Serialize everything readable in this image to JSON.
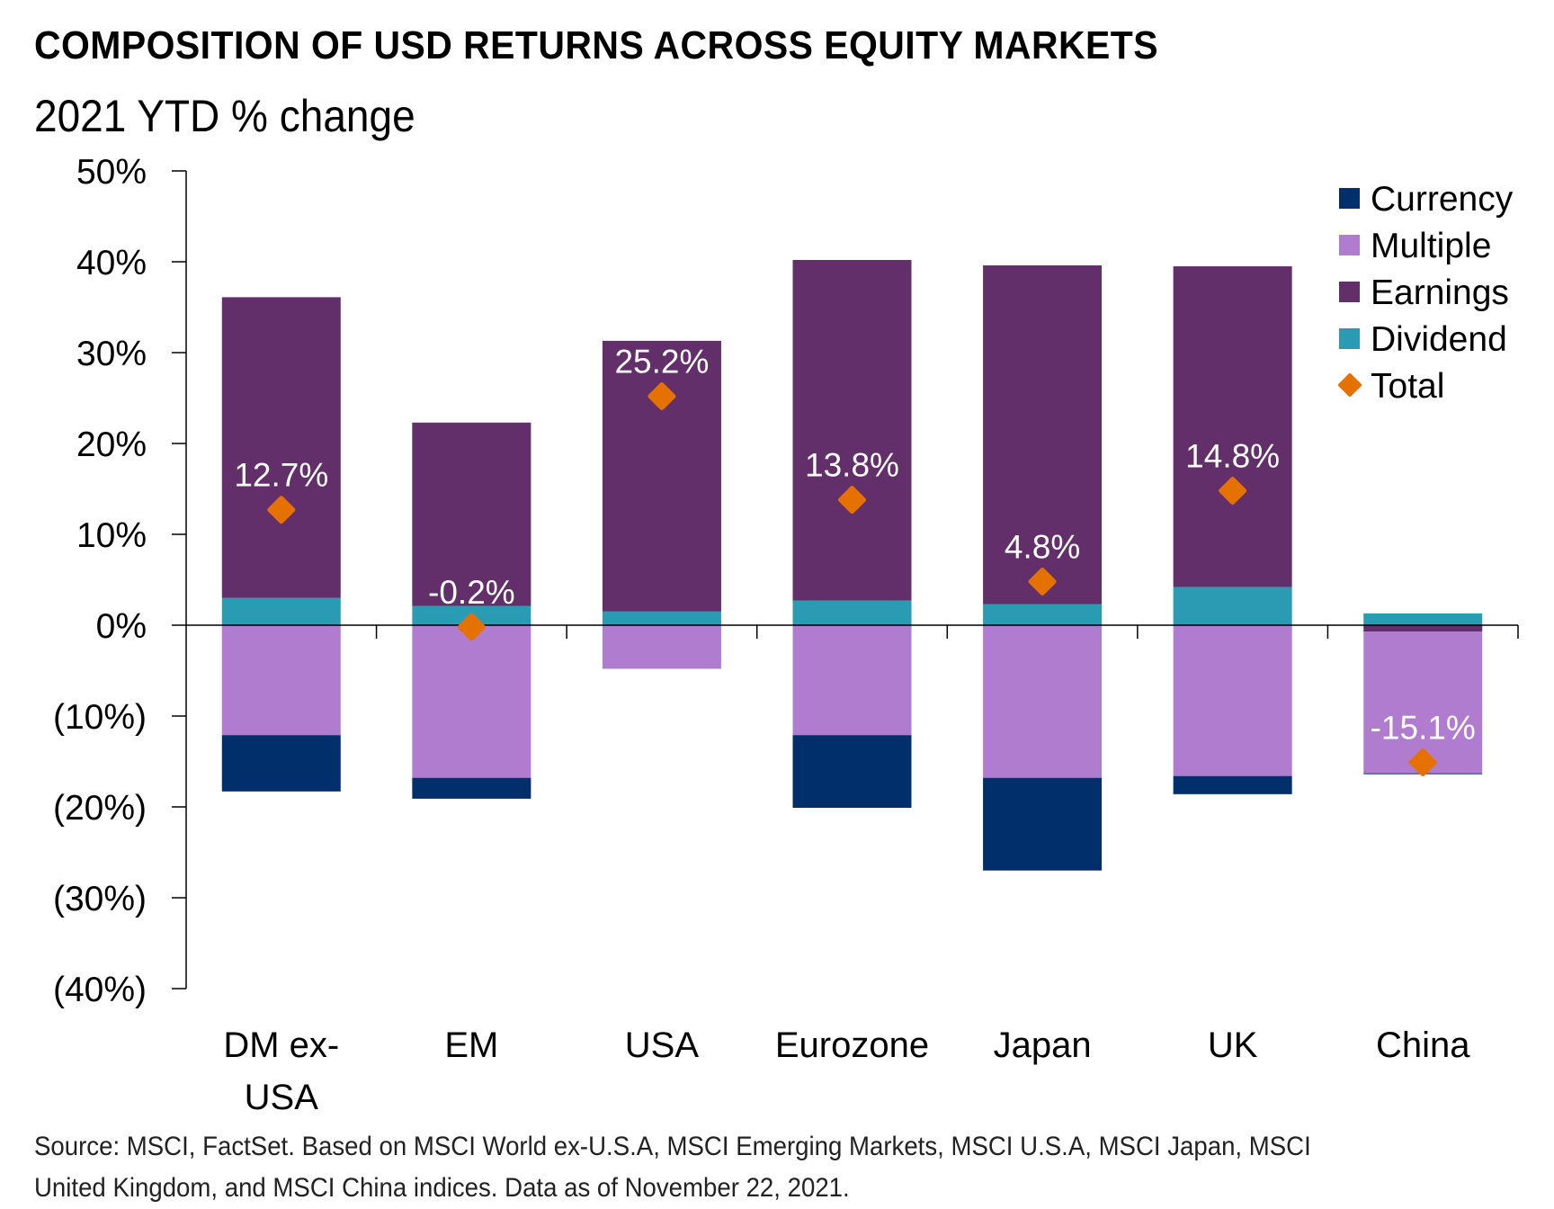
{
  "header": {
    "title": "COMPOSITION OF USD RETURNS ACROSS EQUITY MARKETS",
    "subtitle": "2021 YTD % change"
  },
  "footer": {
    "source_line1": "Source: MSCI, FactSet. Based on MSCI World ex-U.S.A, MSCI Emerging Markets, MSCI U.S.A, MSCI Japan, MSCI",
    "source_line2": "United Kingdom, and MSCI China indices. Data as of November 22, 2021."
  },
  "colors": {
    "Currency": "#002f6c",
    "Multiple": "#b07cd0",
    "Earnings": "#632f6b",
    "Dividend": "#2a9bb3",
    "Total": "#e57200"
  },
  "chart_data": {
    "type": "bar",
    "stacked": true,
    "title": "COMPOSITION OF USD RETURNS ACROSS EQUITY MARKETS",
    "subtitle": "2021 YTD % change",
    "xlabel": "",
    "ylabel": "",
    "ylim": [
      -40,
      50
    ],
    "yticks": [
      50,
      40,
      30,
      20,
      10,
      0,
      -10,
      -20,
      -30,
      -40
    ],
    "ytick_labels": [
      "50%",
      "40%",
      "30%",
      "20%",
      "10%",
      "0%",
      "(10%)",
      "(20%)",
      "(30%)",
      "(40%)"
    ],
    "grid": false,
    "legend_position": "top-right",
    "categories": [
      "DM ex-USA",
      "EM",
      "USA",
      "Eurozone",
      "Japan",
      "UK",
      "China"
    ],
    "category_lines": [
      [
        "DM ex-",
        "USA"
      ],
      [
        "EM"
      ],
      [
        "USA"
      ],
      [
        "Eurozone"
      ],
      [
        "Japan"
      ],
      [
        "UK"
      ],
      [
        "China"
      ]
    ],
    "series": [
      {
        "name": "Currency",
        "values": [
          -6.2,
          -2.3,
          0.0,
          -8.0,
          -10.2,
          -2.0,
          -0.1
        ]
      },
      {
        "name": "Multiple",
        "values": [
          -12.1,
          -16.8,
          -4.8,
          -12.1,
          -16.8,
          -16.6,
          -15.6
        ]
      },
      {
        "name": "Earnings",
        "values": [
          33.1,
          20.2,
          29.8,
          37.5,
          37.3,
          35.3,
          -0.7
        ]
      },
      {
        "name": "Dividend",
        "values": [
          3.0,
          2.1,
          1.5,
          2.7,
          2.3,
          4.2,
          1.3
        ]
      }
    ],
    "total": {
      "name": "Total",
      "values": [
        12.7,
        -0.2,
        25.2,
        13.8,
        4.8,
        14.8,
        -15.1
      ],
      "labels": [
        "12.7%",
        "-0.2%",
        "25.2%",
        "13.8%",
        "4.8%",
        "14.8%",
        "-15.1%"
      ]
    },
    "legend": [
      "Currency",
      "Multiple",
      "Earnings",
      "Dividend",
      "Total"
    ]
  }
}
